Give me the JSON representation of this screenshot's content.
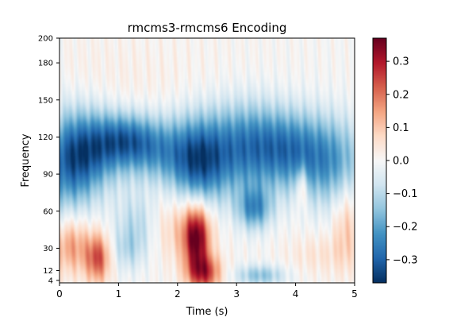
{
  "chart_data": {
    "type": "heatmap",
    "title": "rmcms3-rmcms6 Encoding",
    "xlabel": "Time (s)",
    "ylabel": "Frequency",
    "x_ticks": [
      0,
      1,
      2,
      3,
      4,
      5
    ],
    "x_tick_labels": [
      "0",
      "1",
      "2",
      "3",
      "4",
      "5"
    ],
    "xlim": [
      0,
      5
    ],
    "y_ticks": [
      4,
      12,
      30,
      60,
      90,
      120,
      150,
      180,
      200
    ],
    "y_tick_labels": [
      "4",
      "12",
      "30",
      "60",
      "90",
      "120",
      "150",
      "180",
      "200"
    ],
    "ylim": [
      2,
      200
    ],
    "colormap": "RdBu_r",
    "clim": [
      -0.37,
      0.37
    ],
    "colorbar_ticks": [
      0.3,
      0.2,
      0.1,
      0.0,
      -0.1,
      -0.2,
      -0.3
    ],
    "colorbar_tick_labels": [
      "0.3",
      "0.2",
      "0.1",
      "0.0",
      "−0.1",
      "−0.2",
      "−0.3"
    ],
    "blobs": [
      {
        "t": 0.15,
        "f": 100,
        "st": 0.35,
        "sf": 28,
        "v": -0.26
      },
      {
        "t": 0.6,
        "f": 110,
        "st": 0.35,
        "sf": 22,
        "v": -0.18
      },
      {
        "t": 1.1,
        "f": 118,
        "st": 0.35,
        "sf": 15,
        "v": -0.2
      },
      {
        "t": 1.6,
        "f": 110,
        "st": 0.4,
        "sf": 18,
        "v": -0.18
      },
      {
        "t": 2.35,
        "f": 100,
        "st": 0.35,
        "sf": 25,
        "v": -0.3
      },
      {
        "t": 3.15,
        "f": 112,
        "st": 0.45,
        "sf": 25,
        "v": -0.24
      },
      {
        "t": 3.9,
        "f": 110,
        "st": 0.4,
        "sf": 22,
        "v": -0.2
      },
      {
        "t": 4.6,
        "f": 100,
        "st": 0.4,
        "sf": 25,
        "v": -0.2
      },
      {
        "t": 3.3,
        "f": 62,
        "st": 0.2,
        "sf": 12,
        "v": -0.22
      },
      {
        "t": 1.3,
        "f": 50,
        "st": 0.25,
        "sf": 18,
        "v": -0.1
      },
      {
        "t": 3.4,
        "f": 8,
        "st": 0.3,
        "sf": 6,
        "v": -0.15
      },
      {
        "t": 1.15,
        "f": 28,
        "st": 0.2,
        "sf": 12,
        "v": -0.08
      },
      {
        "t": 0.2,
        "f": 32,
        "st": 0.22,
        "sf": 16,
        "v": 0.16
      },
      {
        "t": 0.65,
        "f": 22,
        "st": 0.15,
        "sf": 14,
        "v": 0.24
      },
      {
        "t": 2.32,
        "f": 38,
        "st": 0.15,
        "sf": 18,
        "v": 0.33
      },
      {
        "t": 2.45,
        "f": 10,
        "st": 0.2,
        "sf": 10,
        "v": 0.26
      },
      {
        "t": 2.1,
        "f": 48,
        "st": 0.35,
        "sf": 20,
        "v": 0.1
      },
      {
        "t": 4.1,
        "f": 80,
        "st": 0.06,
        "sf": 12,
        "v": 0.15
      },
      {
        "t": 4.85,
        "f": 50,
        "st": 0.15,
        "sf": 25,
        "v": 0.1
      },
      {
        "t": 4.4,
        "f": 25,
        "st": 0.4,
        "sf": 12,
        "v": 0.05
      },
      {
        "t": 1.0,
        "f": 165,
        "st": 1.6,
        "sf": 30,
        "v": 0.02
      }
    ]
  }
}
